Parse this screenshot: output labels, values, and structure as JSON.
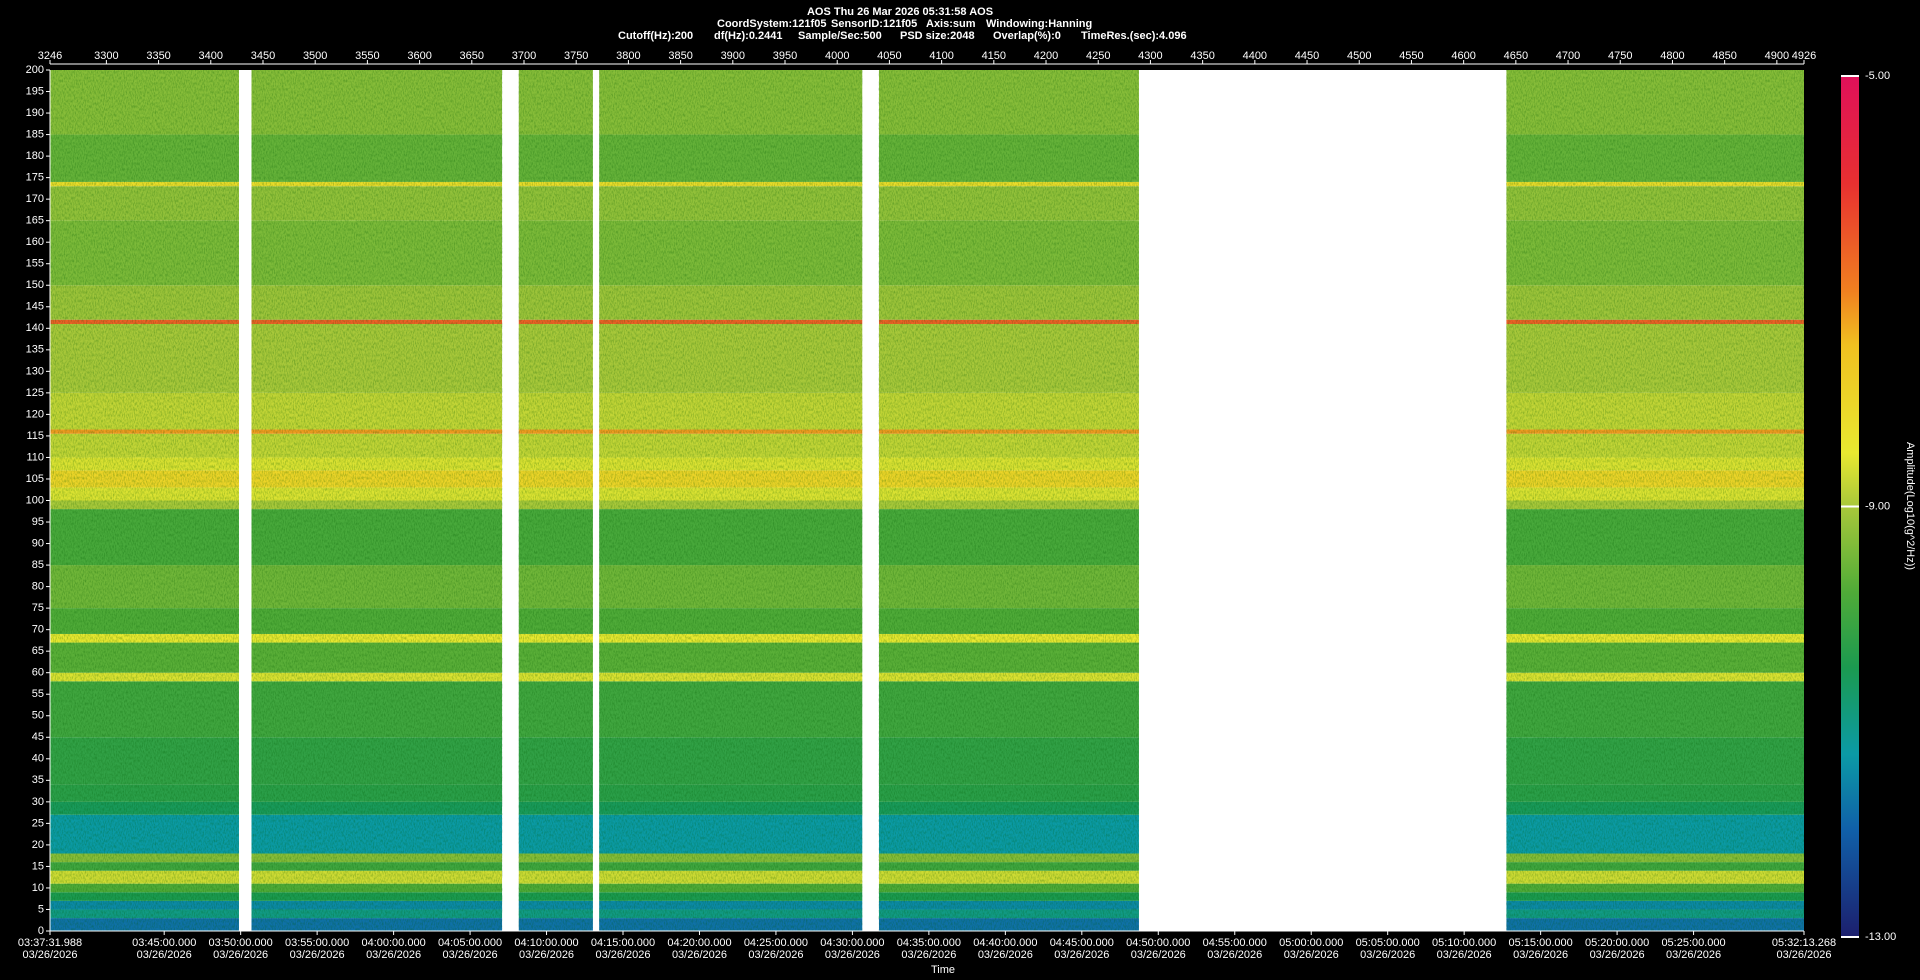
{
  "chart_data": {
    "type": "spectrogram",
    "title": "AOS  Thu 26 Mar 2026 05:31:58  AOS",
    "info_line1": [
      "CoordSystem:121f05",
      "SensorID:121f05",
      "Axis:sum",
      "Windowing:Hanning"
    ],
    "info_line2": [
      "Cutoff(Hz):200",
      "df(Hz):0.2441",
      "Sample/Sec:500",
      "PSD size:2048",
      "Overlap(%):0",
      "TimeRes.(sec):4.096"
    ],
    "xlabel": "Time",
    "colorbar_label": "Amplitude(Log10(g^2/Hz))",
    "xlim": [
      3246,
      4926
    ],
    "xticks": [
      3246,
      3300,
      3350,
      3400,
      3450,
      3500,
      3550,
      3600,
      3650,
      3700,
      3750,
      3800,
      3850,
      3900,
      3950,
      4000,
      4050,
      4100,
      4150,
      4200,
      4250,
      4300,
      4350,
      4400,
      4450,
      4500,
      4550,
      4600,
      4650,
      4700,
      4750,
      4800,
      4850,
      4900,
      4926
    ],
    "x2lim": [
      13051.988,
      19933.268
    ],
    "x2ticks": [
      {
        "value": 13051.988,
        "label": "03:37:31.988"
      },
      {
        "value": 13500,
        "label": "03:45:00.000"
      },
      {
        "value": 13800,
        "label": "03:50:00.000"
      },
      {
        "value": 14100,
        "label": "03:55:00.000"
      },
      {
        "value": 14400,
        "label": "04:00:00.000"
      },
      {
        "value": 14700,
        "label": "04:05:00.000"
      },
      {
        "value": 15000,
        "label": "04:10:00.000"
      },
      {
        "value": 15300,
        "label": "04:15:00.000"
      },
      {
        "value": 15600,
        "label": "04:20:00.000"
      },
      {
        "value": 15900,
        "label": "04:25:00.000"
      },
      {
        "value": 16200,
        "label": "04:30:00.000"
      },
      {
        "value": 16500,
        "label": "04:35:00.000"
      },
      {
        "value": 16800,
        "label": "04:40:00.000"
      },
      {
        "value": 17100,
        "label": "04:45:00.000"
      },
      {
        "value": 17400,
        "label": "04:50:00.000"
      },
      {
        "value": 17700,
        "label": "04:55:00.000"
      },
      {
        "value": 18000,
        "label": "05:00:00.000"
      },
      {
        "value": 18300,
        "label": "05:05:00.000"
      },
      {
        "value": 18600,
        "label": "05:10:00.000"
      },
      {
        "value": 18900,
        "label": "05:15:00.000"
      },
      {
        "value": 19200,
        "label": "05:20:00.000"
      },
      {
        "value": 19500,
        "label": "05:25:00.000"
      },
      {
        "value": 19933.268,
        "label": "05:32:13.268"
      }
    ],
    "x2tick_dates": [
      "03/26/2026",
      "03/26/2026",
      "03/26/2026",
      "03/26/2026",
      "03/26/2026",
      "03/26/2026",
      "03/26/2026",
      "03/26/2026",
      "03/26/2026",
      "03/26/2026",
      "03/26/2026",
      "03/26/2026",
      "03/26/2026",
      "03/26/2026",
      "03/26/2026",
      "03/26/2026",
      "03/26/2026",
      "03/26/2026",
      "03/26/2026",
      "03/26/2026",
      "03/26/2026",
      "03/26/2026",
      "03/26/2026"
    ],
    "ylim": [
      0,
      200
    ],
    "yticks": [
      0,
      5,
      10,
      15,
      20,
      25,
      30,
      35,
      40,
      45,
      50,
      55,
      60,
      65,
      70,
      75,
      80,
      85,
      90,
      95,
      100,
      105,
      110,
      115,
      120,
      125,
      130,
      135,
      140,
      145,
      150,
      155,
      160,
      165,
      170,
      175,
      180,
      185,
      190,
      195,
      200
    ],
    "segments": [
      [
        3246,
        3427
      ],
      [
        3439,
        3679
      ],
      [
        3695,
        3766
      ],
      [
        3772,
        4024
      ],
      [
        4040,
        4289
      ],
      [
        4641,
        4926
      ]
    ],
    "freq_edges": [
      0,
      3,
      5,
      7,
      9,
      11,
      14,
      16,
      18,
      27,
      30,
      34,
      45,
      58,
      60,
      67,
      69,
      75,
      85,
      98,
      100,
      103,
      107,
      110,
      115.5,
      116.5,
      125,
      141,
      142,
      150,
      165,
      173,
      174,
      185,
      200
    ],
    "amplitude": [
      -11.8,
      -11.0,
      -11.5,
      -10.5,
      -9.8,
      -8.7,
      -10.0,
      -9.3,
      -11.3,
      -10.6,
      -10.3,
      -10.2,
      -10.0,
      -8.6,
      -9.7,
      -8.5,
      -9.8,
      -9.5,
      -9.9,
      -9.0,
      -8.6,
      -8.0,
      -8.6,
      -8.8,
      -7.2,
      -8.8,
      -9.0,
      -6.6,
      -9.1,
      -9.4,
      -9.2,
      -8.2,
      -9.6,
      -9.3
    ],
    "clim": [
      -13,
      -5
    ],
    "cticks": [
      {
        "value": -5,
        "label": "-5.00"
      },
      {
        "value": -9,
        "label": "-9.00"
      },
      {
        "value": -13,
        "label": "-13.00"
      }
    ],
    "colorscale": [
      {
        "value": -13,
        "color": "#1c1f6e"
      },
      {
        "value": -12,
        "color": "#1060a8"
      },
      {
        "value": -11.3,
        "color": "#0b9aa5"
      },
      {
        "value": -10.5,
        "color": "#1b9a50"
      },
      {
        "value": -9.8,
        "color": "#4fab38"
      },
      {
        "value": -9,
        "color": "#a8c83a"
      },
      {
        "value": -8.5,
        "color": "#e8e830"
      },
      {
        "value": -7.5,
        "color": "#f0c020"
      },
      {
        "value": -7,
        "color": "#f08020"
      },
      {
        "value": -6,
        "color": "#e83030"
      },
      {
        "value": -5,
        "color": "#e0105a"
      }
    ]
  }
}
